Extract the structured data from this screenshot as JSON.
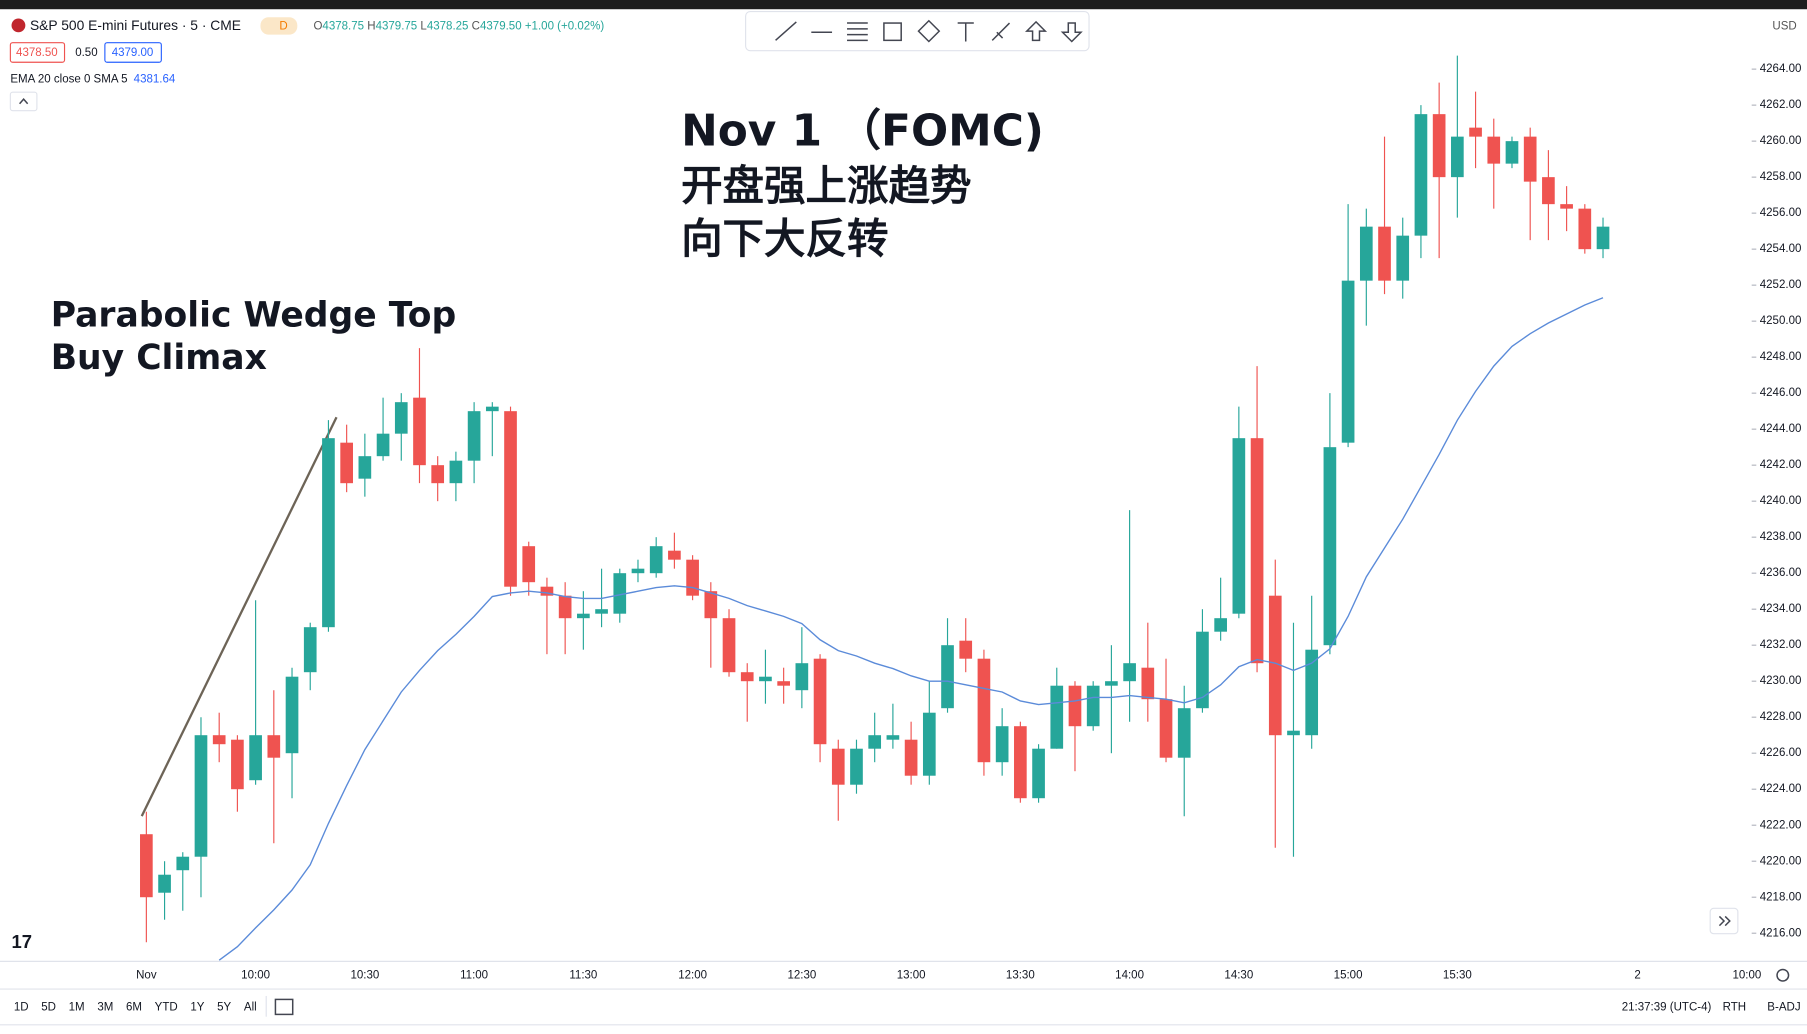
{
  "header": {
    "symbol": "S&P 500 E-mini Futures · 5 · CME",
    "badge": "D",
    "ohlc": [
      {
        "label": "O",
        "value": "4378.75"
      },
      {
        "label": "H",
        "value": "4379.75"
      },
      {
        "label": "L",
        "value": "4378.25"
      },
      {
        "label": "C",
        "value": "4379.50"
      }
    ],
    "change": "+1.00 (+0.02%)",
    "bid": "4378.50",
    "spread": "0.50",
    "ask": "4379.00",
    "indicator": "EMA 20 close 0 SMA 5",
    "indicator_value": "4381.64",
    "currency": "USD"
  },
  "footer": {
    "ranges": [
      "1D",
      "5D",
      "1M",
      "3M",
      "6M",
      "YTD",
      "1Y",
      "5Y",
      "All"
    ],
    "time": "21:37:39 (UTC-4)",
    "session": "RTH",
    "adjust": "B-ADJ"
  },
  "chart_data": {
    "type": "candlestick",
    "annotations": [
      "Nov 1 （FOMC)",
      "开盘强上涨趋势",
      "向下大反转",
      "Parabolic Wedge Top",
      "Buy Climax"
    ],
    "categories": [
      "Nov",
      null,
      null,
      null,
      null,
      null,
      "10:00",
      null,
      null,
      null,
      null,
      null,
      "10:30",
      null,
      null,
      null,
      null,
      null,
      "11:00",
      null,
      null,
      null,
      null,
      null,
      "11:30",
      null,
      null,
      null,
      null,
      null,
      "12:00",
      null,
      null,
      null,
      null,
      null,
      "12:30",
      null,
      null,
      null,
      null,
      null,
      "13:00",
      null,
      null,
      null,
      null,
      null,
      "13:30",
      null,
      null,
      null,
      null,
      null,
      "14:00",
      null,
      null,
      null,
      null,
      null,
      "14:30",
      null,
      null,
      null,
      null,
      null,
      "15:00",
      null,
      null,
      null,
      null,
      null,
      "15:30",
      null,
      null,
      null,
      null,
      null,
      null,
      null,
      null
    ],
    "x_axis_after": [
      "2",
      "10:00"
    ],
    "open": [
      4221.5,
      4218.25,
      4219.5,
      4220.25,
      4227,
      4226.75,
      4224.5,
      4227,
      4226,
      4230.5,
      4233,
      4243.25,
      4241.25,
      4242.5,
      4243.75,
      4245.75,
      4242,
      4241,
      4242.25,
      4245,
      4245,
      4237.5,
      4235.25,
      4234.75,
      4233.5,
      4233.75,
      4233.75,
      4236,
      4236,
      4237.25,
      4236.75,
      4235,
      4233.5,
      4230.5,
      4230,
      4230,
      4229.5,
      4231.25,
      4226.25,
      4224.25,
      4226.25,
      4226.75,
      4226.75,
      4224.75,
      4228.5,
      4232.25,
      4231.25,
      4225.5,
      4227.5,
      4223.5,
      4226.25,
      4229.75,
      4227.5,
      4229.75,
      4230,
      4230.75,
      4229,
      4225.75,
      4228.5,
      4232.75,
      4233.75,
      4243.5,
      4234.75,
      4227,
      4227,
      4232,
      4243.25,
      4252.25,
      4255.25,
      4252.25,
      4254.75,
      4261.5,
      4258,
      4260.75,
      4260.25,
      4258.75,
      4260.25,
      4258,
      4256.5,
      4256.25,
      4254
    ],
    "high": [
      4222.75,
      4220,
      4220.5,
      4228,
      4228.25,
      4227,
      4234.5,
      4229.5,
      4230.75,
      4233.25,
      4244.5,
      4244.25,
      4243.75,
      4245.75,
      4246,
      4248.5,
      4242.5,
      4242.75,
      4245.5,
      4245.5,
      4245.25,
      4237.75,
      4235.75,
      4235.5,
      4235,
      4236.25,
      4236.25,
      4236.75,
      4238,
      4238.25,
      4237,
      4235.5,
      4234,
      4231,
      4231.75,
      4230.75,
      4233,
      4231.5,
      4226.75,
      4226.75,
      4228.25,
      4228.75,
      4227.75,
      4230,
      4233.5,
      4233.5,
      4231.75,
      4228.5,
      4227.75,
      4226.5,
      4230.75,
      4230,
      4230,
      4232,
      4239.5,
      4233.25,
      4231.25,
      4229.75,
      4234,
      4235.75,
      4245.25,
      4247.5,
      4236.75,
      4233.25,
      4234.75,
      4246,
      4256.5,
      4256.25,
      4260.25,
      4255.75,
      4262,
      4263.25,
      4264.75,
      4262.75,
      4261.25,
      4260.25,
      4260.75,
      4259.5,
      4257.5,
      4256.5,
      4255.75
    ],
    "low": [
      4215.5,
      4216.75,
      4217.25,
      4218,
      4225.5,
      4222.75,
      4224.25,
      4221,
      4223.5,
      4229.5,
      4232.75,
      4240.5,
      4240.25,
      4242.25,
      4242.25,
      4241,
      4240,
      4240,
      4241,
      4242.5,
      4234.75,
      4234.75,
      4231.5,
      4231.5,
      4231.75,
      4233,
      4233.25,
      4235.5,
      4235.75,
      4236.25,
      4234.5,
      4230.75,
      4230.25,
      4227.75,
      4228.75,
      4228.75,
      4228.5,
      4225.5,
      4222.25,
      4223.75,
      4225.5,
      4226.25,
      4224.25,
      4224.25,
      4228.25,
      4230.5,
      4224.75,
      4224.75,
      4223.25,
      4223.25,
      4226.25,
      4225,
      4227.25,
      4226,
      4227.75,
      4227.75,
      4225.5,
      4222.5,
      4228.25,
      4232.25,
      4233.5,
      4230.5,
      4220.75,
      4220.25,
      4226.25,
      4231.5,
      4243,
      4249.75,
      4251.5,
      4251.25,
      4253.5,
      4253.5,
      4255.75,
      4258.5,
      4256.25,
      4258.5,
      4254.5,
      4254.5,
      4255,
      4253.75,
      4253.5
    ],
    "close": [
      4218,
      4219.25,
      4220.25,
      4227,
      4226.5,
      4224,
      4227,
      4225.75,
      4230.25,
      4233,
      4243.5,
      4241,
      4242.5,
      4243.75,
      4245.5,
      4242,
      4241,
      4242.25,
      4245,
      4245.25,
      4235.25,
      4235.5,
      4234.75,
      4233.5,
      4233.75,
      4234,
      4236,
      4236.25,
      4237.5,
      4236.75,
      4234.75,
      4233.5,
      4230.5,
      4230,
      4230.25,
      4229.75,
      4231,
      4226.5,
      4224.25,
      4226.25,
      4227,
      4227,
      4224.75,
      4228.25,
      4232,
      4231.25,
      4225.5,
      4227.5,
      4223.5,
      4226.25,
      4229.75,
      4227.5,
      4229.75,
      4230,
      4231,
      4229,
      4225.75,
      4228.5,
      4232.75,
      4233.5,
      4243.5,
      4231,
      4227,
      4227.25,
      4231.75,
      4243,
      4252.25,
      4255.25,
      4252.25,
      4254.75,
      4261.5,
      4258,
      4260.25,
      4260.25,
      4258.75,
      4260,
      4257.75,
      4256.5,
      4256.25,
      4254,
      4255.25
    ],
    "up_color": "#26a69a",
    "down_color": "#ef5350",
    "overlay": {
      "color": "#5b8bd9",
      "values": [
        null,
        null,
        null,
        null,
        4214.5,
        4215.25,
        4216.3,
        4217.3,
        4218.4,
        4219.8,
        4222.1,
        4224.2,
        4226.2,
        4227.8,
        4229.4,
        4230.6,
        4231.7,
        4232.6,
        4233.6,
        4234.7,
        4234.9,
        4235,
        4234.9,
        4234.7,
        4234.6,
        4234.6,
        4234.8,
        4235,
        4235.2,
        4235.3,
        4235.2,
        4234.9,
        4234.6,
        4234.2,
        4233.9,
        4233.6,
        4233.2,
        4232.3,
        4231.7,
        4231.4,
        4231,
        4230.7,
        4230.3,
        4230,
        4230,
        4229.8,
        4229.6,
        4229.4,
        4228.9,
        4228.7,
        4228.8,
        4228.9,
        4229.1,
        4229.1,
        4229.2,
        4229.1,
        4229,
        4228.8,
        4229.1,
        4229.8,
        4230.8,
        4231.2,
        4231,
        4230.6,
        4231,
        4231.8,
        4233.6,
        4235.8,
        4237.4,
        4239,
        4240.8,
        4242.6,
        4244.5,
        4246.1,
        4247.5,
        4248.6,
        4249.3,
        4249.9,
        4250.4,
        4250.9,
        4251.3
      ]
    },
    "ylim": [
      4214.5,
      4267.2
    ],
    "yticks": [
      {
        "value": 4216,
        "label": "4216.00"
      },
      {
        "value": 4218,
        "label": "4218.00"
      },
      {
        "value": 4220,
        "label": "4220.00"
      },
      {
        "value": 4222,
        "label": "4222.00"
      },
      {
        "value": 4224,
        "label": "4224.00"
      },
      {
        "value": 4226,
        "label": "4226.00"
      },
      {
        "value": 4228,
        "label": "4228.00"
      },
      {
        "value": 4230,
        "label": "4230.00"
      },
      {
        "value": 4232,
        "label": "4232.00"
      },
      {
        "value": 4234,
        "label": "4234.00"
      },
      {
        "value": 4236,
        "label": "4236.00"
      },
      {
        "value": 4238,
        "label": "4238.00"
      },
      {
        "value": 4240,
        "label": "4240.00"
      },
      {
        "value": 4242,
        "label": "4242.00"
      },
      {
        "value": 4244,
        "label": "4244.00"
      },
      {
        "value": 4246,
        "label": "4246.00"
      },
      {
        "value": 4248,
        "label": "4248.00"
      },
      {
        "value": 4250,
        "label": "4250.00"
      },
      {
        "value": 4252,
        "label": "4252.00"
      },
      {
        "value": 4254,
        "label": "4254.00"
      },
      {
        "value": 4256,
        "label": "4256.00"
      },
      {
        "value": 4258,
        "label": "4258.00"
      },
      {
        "value": 4260,
        "label": "4260.00"
      },
      {
        "value": 4262,
        "label": "4262.00"
      },
      {
        "value": 4264,
        "label": "4264.00"
      }
    ],
    "grid": false
  }
}
